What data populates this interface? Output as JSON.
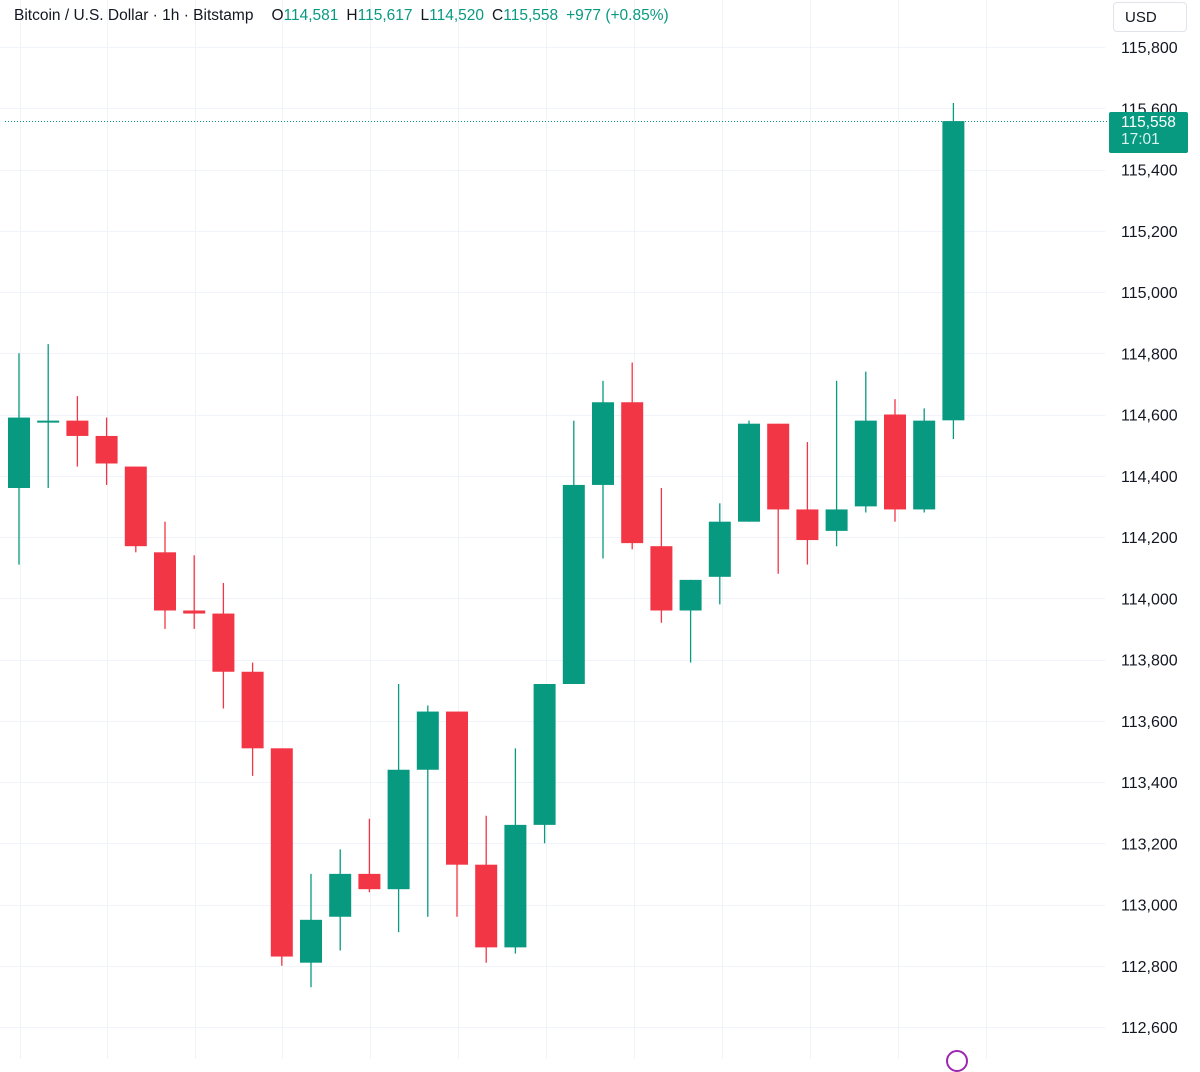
{
  "legend": {
    "symbol": "Bitcoin / U.S. Dollar · 1h · Bitstamp",
    "open_label": "O",
    "open_value": "114,581",
    "high_label": "H",
    "high_value": "115,617",
    "low_label": "L",
    "low_value": "114,520",
    "close_label": "C",
    "close_value": "115,558",
    "change": "+977 (+0.85%)"
  },
  "currency_button": "USD",
  "last_price": {
    "price": "115,558",
    "countdown": "17:01"
  },
  "colors": {
    "up": "#089981",
    "down": "#F23645",
    "grid": "#F0F3FA",
    "text": "#131722"
  },
  "chart_data": {
    "type": "candlestick",
    "series": [
      {
        "name": "",
        "ohlc": [
          [
            114360,
            114800,
            114110,
            114590
          ],
          [
            114580,
            114830,
            114360,
            114580
          ],
          [
            114580,
            114660,
            114430,
            114530
          ],
          [
            114530,
            114590,
            114370,
            114440
          ],
          [
            114430,
            114430,
            114150,
            114170
          ],
          [
            114150,
            114250,
            113900,
            113960
          ],
          [
            113960,
            114140,
            113900,
            113950
          ],
          [
            113950,
            114050,
            113640,
            113760
          ],
          [
            113760,
            113790,
            113420,
            113510
          ],
          [
            113510,
            113510,
            112800,
            112830
          ],
          [
            112810,
            113100,
            112730,
            112950
          ],
          [
            112960,
            113180,
            112850,
            113100
          ],
          [
            113100,
            113280,
            113040,
            113050
          ],
          [
            113050,
            113720,
            112910,
            113440
          ],
          [
            113440,
            113650,
            112960,
            113630
          ],
          [
            113630,
            113630,
            112960,
            113130
          ],
          [
            113130,
            113290,
            112810,
            112860
          ],
          [
            112860,
            113510,
            112840,
            113260
          ],
          [
            113260,
            113720,
            113200,
            113720
          ],
          [
            113720,
            114580,
            113720,
            114370
          ],
          [
            114370,
            114710,
            114130,
            114640
          ],
          [
            114640,
            114770,
            114160,
            114180
          ],
          [
            114170,
            114360,
            113920,
            113960
          ],
          [
            113960,
            114060,
            113790,
            114060
          ],
          [
            114070,
            114310,
            113980,
            114250
          ],
          [
            114250,
            114580,
            114250,
            114570
          ],
          [
            114570,
            114570,
            114080,
            114290
          ],
          [
            114290,
            114510,
            114110,
            114190
          ],
          [
            114220,
            114710,
            114170,
            114290
          ],
          [
            114300,
            114740,
            114280,
            114580
          ],
          [
            114600,
            114650,
            114250,
            114290
          ],
          [
            114290,
            114620,
            114280,
            114580
          ],
          [
            114581,
            115617,
            114520,
            115558
          ]
        ]
      }
    ],
    "y_ticks": [
      "115,800",
      "115,600",
      "115,400",
      "115,200",
      "115,000",
      "114,800",
      "114,600",
      "114,400",
      "114,200",
      "114,000",
      "113,800",
      "113,600",
      "113,400",
      "113,200",
      "113,000",
      "112,800",
      "112,600"
    ],
    "ylim": [
      112560,
      115880
    ],
    "last_value": 115558,
    "grid": true
  }
}
